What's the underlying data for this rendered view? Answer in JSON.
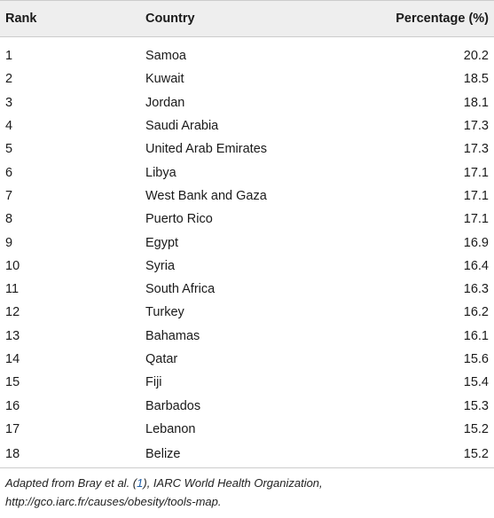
{
  "table": {
    "headers": {
      "rank": "Rank",
      "country": "Country",
      "percentage": "Percentage (%)"
    },
    "rows": [
      {
        "rank": "1",
        "country": "Samoa",
        "percentage": "20.2"
      },
      {
        "rank": "2",
        "country": "Kuwait",
        "percentage": "18.5"
      },
      {
        "rank": "3",
        "country": "Jordan",
        "percentage": "18.1"
      },
      {
        "rank": "4",
        "country": "Saudi Arabia",
        "percentage": "17.3"
      },
      {
        "rank": "5",
        "country": "United Arab Emirates",
        "percentage": "17.3"
      },
      {
        "rank": "6",
        "country": "Libya",
        "percentage": "17.1"
      },
      {
        "rank": "7",
        "country": "West Bank and Gaza",
        "percentage": "17.1"
      },
      {
        "rank": "8",
        "country": "Puerto Rico",
        "percentage": "17.1"
      },
      {
        "rank": "9",
        "country": "Egypt",
        "percentage": "16.9"
      },
      {
        "rank": "10",
        "country": "Syria",
        "percentage": "16.4"
      },
      {
        "rank": "11",
        "country": "South Africa",
        "percentage": "16.3"
      },
      {
        "rank": "12",
        "country": "Turkey",
        "percentage": "16.2"
      },
      {
        "rank": "13",
        "country": "Bahamas",
        "percentage": "16.1"
      },
      {
        "rank": "14",
        "country": "Qatar",
        "percentage": "15.6"
      },
      {
        "rank": "15",
        "country": "Fiji",
        "percentage": "15.4"
      },
      {
        "rank": "16",
        "country": "Barbados",
        "percentage": "15.3"
      },
      {
        "rank": "17",
        "country": "Lebanon",
        "percentage": "15.2"
      },
      {
        "rank": "18",
        "country": "Belize",
        "percentage": "15.2"
      }
    ]
  },
  "footnote": {
    "prefix": "Adapted from Bray et al. (",
    "ref": "1",
    "suffix": "), IARC World Health Organization, http://gco.iarc.fr/causes/obesity/tools-map."
  },
  "colors": {
    "header_bg": "#eeeeee",
    "rule": "#cccccc",
    "link": "#1f5fa8"
  }
}
